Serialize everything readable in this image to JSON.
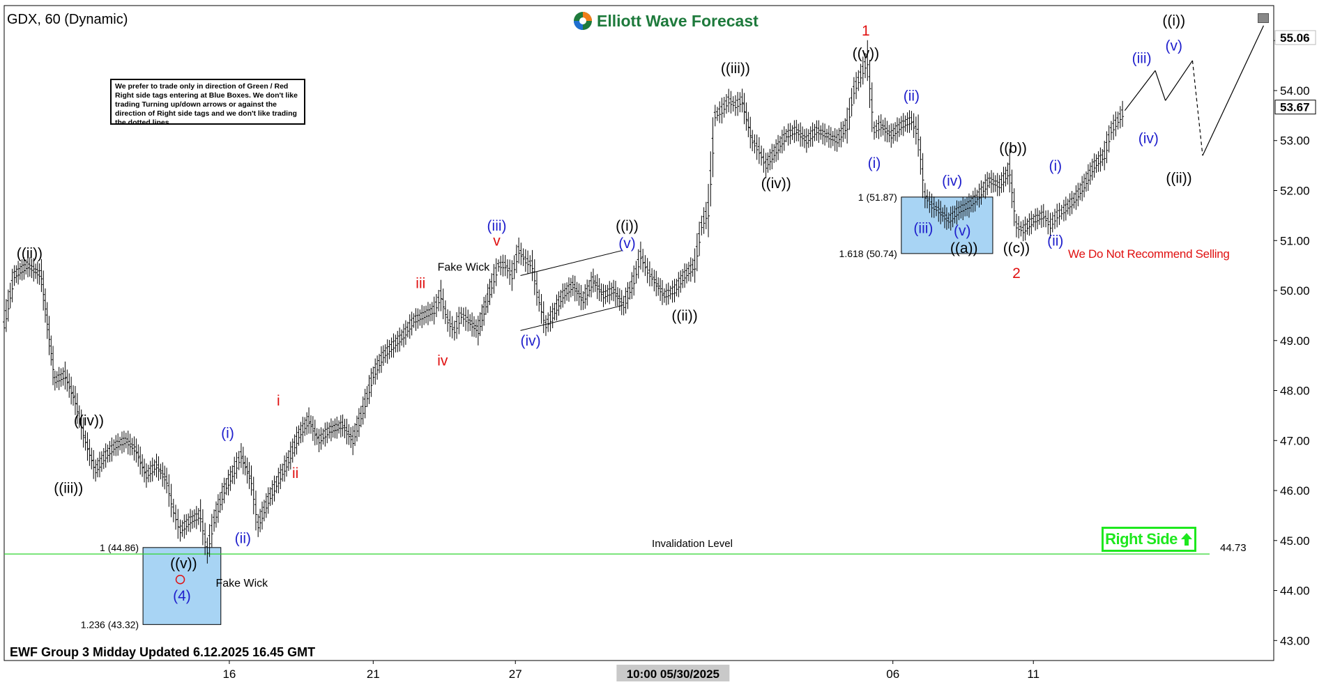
{
  "header": {
    "symbol_title": "GDX, 60 (Dynamic)",
    "brand": "Elliott Wave Forecast"
  },
  "note": "We prefer to trade only in direction of Green / Red Right side tags entering at Blue Boxes. We don't like trading Turning up/down arrows or against the direction of Right side tags and we don't like trading the dotted lines.",
  "footer": "EWF Group 3 Midday Updated 6.12.2025 16.45 GMT",
  "right_side_tag": "Right Side",
  "warning": "We Do Not Recommend Selling",
  "colors": {
    "wave_black": "#000000",
    "wave_blue": "#1f1fcc",
    "wave_red": "#e01010",
    "invalidation_line": "#2fd62f",
    "blue_box_fill": "#a8d4f4",
    "right_side": "#1ee81e"
  },
  "chart_data": {
    "type": "line",
    "title": "GDX, 60 (Dynamic)",
    "ylim": [
      42.6,
      55.7
    ],
    "y_ticks": [
      43.0,
      44.0,
      45.0,
      46.0,
      47.0,
      48.0,
      49.0,
      50.0,
      51.0,
      52.0,
      53.0,
      54.0,
      55.0
    ],
    "x_ticks": [
      "16",
      "21",
      "27",
      "06",
      "11"
    ],
    "x_highlight": "10:00 05/30/2025",
    "last_price": "53.67",
    "top_price": "55.06",
    "invalidation": {
      "label": "Invalidation Level",
      "value": 44.73,
      "value_label": "44.73"
    },
    "price_path": [
      [
        0,
        49.3
      ],
      [
        6,
        50.3
      ],
      [
        14,
        50.5
      ],
      [
        22,
        50.3
      ],
      [
        30,
        48.2
      ],
      [
        36,
        48.3
      ],
      [
        42,
        47.8
      ],
      [
        48,
        47.0
      ],
      [
        54,
        46.4
      ],
      [
        60,
        46.7
      ],
      [
        66,
        46.9
      ],
      [
        72,
        47.0
      ],
      [
        78,
        46.8
      ],
      [
        84,
        46.3
      ],
      [
        90,
        46.5
      ],
      [
        96,
        46.2
      ],
      [
        100,
        45.6
      ],
      [
        104,
        45.2
      ],
      [
        110,
        45.4
      ],
      [
        116,
        45.5
      ],
      [
        120,
        44.8
      ],
      [
        124,
        45.4
      ],
      [
        130,
        46.0
      ],
      [
        136,
        46.4
      ],
      [
        140,
        46.7
      ],
      [
        146,
        46.2
      ],
      [
        150,
        45.3
      ],
      [
        156,
        45.8
      ],
      [
        162,
        46.2
      ],
      [
        168,
        46.6
      ],
      [
        174,
        47.1
      ],
      [
        180,
        47.4
      ],
      [
        186,
        47.0
      ],
      [
        192,
        47.2
      ],
      [
        200,
        47.3
      ],
      [
        206,
        47.0
      ],
      [
        212,
        47.6
      ],
      [
        218,
        48.3
      ],
      [
        224,
        48.7
      ],
      [
        230,
        48.9
      ],
      [
        236,
        49.1
      ],
      [
        242,
        49.4
      ],
      [
        248,
        49.5
      ],
      [
        254,
        49.6
      ],
      [
        258,
        49.9
      ],
      [
        262,
        49.4
      ],
      [
        266,
        49.2
      ],
      [
        270,
        49.5
      ],
      [
        274,
        49.4
      ],
      [
        280,
        49.2
      ],
      [
        288,
        50.1
      ],
      [
        292,
        50.5
      ],
      [
        296,
        50.5
      ],
      [
        300,
        50.3
      ],
      [
        304,
        50.8
      ],
      [
        308,
        50.6
      ],
      [
        312,
        50.5
      ],
      [
        316,
        49.8
      ],
      [
        320,
        49.3
      ],
      [
        324,
        49.5
      ],
      [
        330,
        49.9
      ],
      [
        336,
        50.1
      ],
      [
        342,
        49.8
      ],
      [
        348,
        50.2
      ],
      [
        354,
        49.9
      ],
      [
        360,
        50.0
      ],
      [
        366,
        49.7
      ],
      [
        372,
        50.2
      ],
      [
        376,
        50.7
      ],
      [
        380,
        50.4
      ],
      [
        384,
        50.2
      ],
      [
        390,
        49.9
      ],
      [
        396,
        50.0
      ],
      [
        402,
        50.3
      ],
      [
        408,
        50.5
      ],
      [
        412,
        51.3
      ],
      [
        416,
        51.6
      ],
      [
        420,
        53.5
      ],
      [
        424,
        53.6
      ],
      [
        428,
        53.8
      ],
      [
        432,
        53.7
      ],
      [
        436,
        53.8
      ],
      [
        442,
        53.0
      ],
      [
        446,
        52.8
      ],
      [
        450,
        52.5
      ],
      [
        456,
        52.8
      ],
      [
        462,
        53.1
      ],
      [
        468,
        53.2
      ],
      [
        474,
        53.0
      ],
      [
        480,
        53.2
      ],
      [
        486,
        53.1
      ],
      [
        492,
        53.0
      ],
      [
        498,
        53.3
      ],
      [
        502,
        54.0
      ],
      [
        506,
        54.3
      ],
      [
        510,
        54.6
      ],
      [
        514,
        53.2
      ],
      [
        518,
        53.3
      ],
      [
        524,
        53.1
      ],
      [
        530,
        53.3
      ],
      [
        536,
        53.4
      ],
      [
        540,
        53.1
      ],
      [
        544,
        51.9
      ],
      [
        548,
        51.7
      ],
      [
        552,
        51.6
      ],
      [
        558,
        51.4
      ],
      [
        564,
        51.6
      ],
      [
        570,
        51.7
      ],
      [
        576,
        51.9
      ],
      [
        582,
        52.2
      ],
      [
        588,
        52.1
      ],
      [
        594,
        52.4
      ],
      [
        598,
        51.3
      ],
      [
        602,
        51.2
      ],
      [
        608,
        51.4
      ],
      [
        614,
        51.5
      ],
      [
        618,
        51.3
      ],
      [
        622,
        51.5
      ],
      [
        626,
        51.6
      ],
      [
        632,
        51.8
      ],
      [
        638,
        52.1
      ],
      [
        644,
        52.5
      ],
      [
        650,
        52.7
      ],
      [
        654,
        53.2
      ],
      [
        658,
        53.4
      ],
      [
        662,
        53.6
      ]
    ],
    "projection": [
      [
        662,
        53.6
      ],
      [
        680,
        54.4
      ],
      [
        686,
        53.8
      ],
      [
        702,
        54.6
      ],
      [
        708,
        52.7
      ],
      [
        744,
        55.3
      ]
    ],
    "projection_dashed_segment": [
      [
        702,
        54.6
      ],
      [
        708,
        52.7
      ]
    ],
    "wedge": [
      [
        305,
        50.3
      ],
      [
        365,
        50.8
      ],
      [
        365,
        49.7
      ],
      [
        305,
        49.2
      ]
    ],
    "blue_boxes": [
      {
        "x0": 82,
        "x1": 128,
        "y_top": 44.86,
        "y_bottom": 43.32,
        "top_label": "1 (44.86)",
        "bottom_label": "1.236 (43.32)"
      },
      {
        "x0": 530,
        "x1": 584,
        "y_top": 51.87,
        "y_bottom": 50.74,
        "top_label": "1 (51.87)",
        "bottom_label": "1.618 (50.74)"
      }
    ],
    "wave_labels": [
      {
        "text": "((ii))",
        "x": 15,
        "y": 50.65,
        "color": "black"
      },
      {
        "text": "((iii))",
        "x": 38,
        "y": 45.95,
        "color": "black"
      },
      {
        "text": "((iv))",
        "x": 50,
        "y": 47.3,
        "color": "black"
      },
      {
        "text": "((v))",
        "x": 106,
        "y": 44.45,
        "color": "black"
      },
      {
        "text": "(4)",
        "x": 105,
        "y": 43.8,
        "color": "blue"
      },
      {
        "text": "Fake Wick",
        "x": 125,
        "y": 44.08,
        "color": "black",
        "size": "sm"
      },
      {
        "text": "(i)",
        "x": 132,
        "y": 47.05,
        "color": "blue"
      },
      {
        "text": "(ii)",
        "x": 141,
        "y": 44.95,
        "color": "blue"
      },
      {
        "text": "i",
        "x": 162,
        "y": 47.7,
        "color": "red"
      },
      {
        "text": "ii",
        "x": 172,
        "y": 46.25,
        "color": "red"
      },
      {
        "text": "iii",
        "x": 246,
        "y": 50.05,
        "color": "red"
      },
      {
        "text": "Fake Wick",
        "x": 256,
        "y": 50.4,
        "color": "black",
        "size": "sm"
      },
      {
        "text": "iv",
        "x": 259,
        "y": 48.5,
        "color": "red"
      },
      {
        "text": "(iii)",
        "x": 291,
        "y": 51.2,
        "color": "blue"
      },
      {
        "text": "v",
        "x": 291,
        "y": 50.9,
        "color": "red"
      },
      {
        "text": "(iv)",
        "x": 311,
        "y": 48.9,
        "color": "blue"
      },
      {
        "text": "((i))",
        "x": 368,
        "y": 51.2,
        "color": "black"
      },
      {
        "text": "(v)",
        "x": 368,
        "y": 50.85,
        "color": "blue"
      },
      {
        "text": "((ii))",
        "x": 402,
        "y": 49.4,
        "color": "black"
      },
      {
        "text": "((iii))",
        "x": 432,
        "y": 54.35,
        "color": "black"
      },
      {
        "text": "((iv))",
        "x": 456,
        "y": 52.05,
        "color": "black"
      },
      {
        "text": "1",
        "x": 509,
        "y": 55.1,
        "color": "red"
      },
      {
        "text": "((v))",
        "x": 509,
        "y": 54.65,
        "color": "black"
      },
      {
        "text": "(ii)",
        "x": 536,
        "y": 53.8,
        "color": "blue"
      },
      {
        "text": "(i)",
        "x": 514,
        "y": 52.45,
        "color": "blue"
      },
      {
        "text": "(iii)",
        "x": 543,
        "y": 51.15,
        "color": "blue"
      },
      {
        "text": "(iv)",
        "x": 560,
        "y": 52.1,
        "color": "blue"
      },
      {
        "text": "(v)",
        "x": 566,
        "y": 51.1,
        "color": "blue"
      },
      {
        "text": "((a))",
        "x": 567,
        "y": 50.75,
        "color": "black"
      },
      {
        "text": "((b))",
        "x": 596,
        "y": 52.75,
        "color": "black"
      },
      {
        "text": "((c))",
        "x": 598,
        "y": 50.75,
        "color": "black"
      },
      {
        "text": "2",
        "x": 598,
        "y": 50.25,
        "color": "red"
      },
      {
        "text": "(i)",
        "x": 621,
        "y": 52.4,
        "color": "blue"
      },
      {
        "text": "(ii)",
        "x": 621,
        "y": 50.9,
        "color": "blue"
      },
      {
        "text": "(iii)",
        "x": 672,
        "y": 54.55,
        "color": "blue"
      },
      {
        "text": "(iv)",
        "x": 676,
        "y": 52.95,
        "color": "blue"
      },
      {
        "text": "((i))",
        "x": 691,
        "y": 55.3,
        "color": "black"
      },
      {
        "text": "(v)",
        "x": 691,
        "y": 54.8,
        "color": "blue"
      },
      {
        "text": "((ii))",
        "x": 694,
        "y": 52.15,
        "color": "black"
      }
    ],
    "x_tick_positions": [
      133,
      218,
      302,
      525,
      608
    ],
    "x_highlight_position": 398
  }
}
